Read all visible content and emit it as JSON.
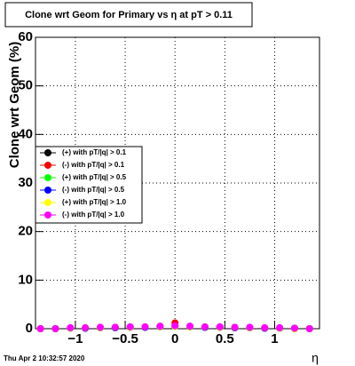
{
  "chart_data": {
    "type": "scatter",
    "title": "Clone wrt Geom for Primary vs   η at pT > 0.11",
    "y_label": "Clone wrt Geom (%)",
    "x_label": "η",
    "timestamp": "Thu Apr  2 10:32:57 2020",
    "x": [
      -1.35,
      -1.2,
      -1.05,
      -0.9,
      -0.75,
      -0.6,
      -0.45,
      -0.3,
      -0.15,
      0,
      0.15,
      0.3,
      0.45,
      0.6,
      0.75,
      0.9,
      1.05,
      1.2,
      1.35
    ],
    "series": [
      {
        "name": "(+) with pT/|q| > 0.1",
        "color": "#000000",
        "values": [
          0,
          0,
          0.1,
          0.1,
          0.2,
          0.2,
          0.3,
          0.3,
          0.4,
          0.5,
          0.4,
          0.3,
          0.3,
          0.2,
          0.2,
          0.1,
          0.1,
          0,
          0
        ]
      },
      {
        "name": "(-) with pT/|q| > 0.1",
        "color": "#ff0000",
        "values": [
          0,
          0,
          0.1,
          0.1,
          0.2,
          0.2,
          0.3,
          0.3,
          0.5,
          1.2,
          0.5,
          0.3,
          0.3,
          0.2,
          0.2,
          0.1,
          0.1,
          0,
          0
        ]
      },
      {
        "name": "(+) with pT/|q| > 0.5",
        "color": "#00ff00",
        "values": [
          0,
          0,
          0.1,
          0.1,
          0.2,
          0.2,
          0.3,
          0.4,
          0.4,
          0.5,
          0.4,
          0.3,
          0.3,
          0.2,
          0.2,
          0.1,
          0.1,
          0,
          0
        ]
      },
      {
        "name": "(-) with pT/|q| > 0.5",
        "color": "#0000ff",
        "values": [
          0,
          0,
          0.1,
          0.1,
          0.2,
          0.2,
          0.3,
          0.3,
          0.4,
          0.6,
          0.4,
          0.3,
          0.3,
          0.2,
          0.2,
          0.1,
          0.1,
          0.1,
          0
        ]
      },
      {
        "name": "(+) with pT/|q| > 1.0",
        "color": "#ffff00",
        "values": [
          0,
          0,
          0.1,
          0.2,
          0.2,
          0.3,
          0.3,
          0.4,
          0.4,
          0.5,
          0.4,
          0.4,
          0.3,
          0.3,
          0.2,
          0.2,
          0.1,
          0,
          0
        ]
      },
      {
        "name": "(-) with pT/|q| > 1.0",
        "color": "#ff00ff",
        "values": [
          0,
          0,
          0.2,
          0.2,
          0.3,
          0.3,
          0.4,
          0.4,
          0.5,
          0.6,
          0.5,
          0.4,
          0.4,
          0.3,
          0.3,
          0.2,
          0.2,
          0.1,
          0
        ]
      }
    ],
    "xlim": [
      -1.4,
      1.45
    ],
    "ylim": [
      0,
      60
    ],
    "xticks": [
      {
        "value": -1,
        "label": "−1"
      },
      {
        "value": -0.5,
        "label": "−0.5"
      },
      0,
      0.5,
      1
    ],
    "yticks": [
      0,
      10,
      20,
      30,
      40,
      50,
      60
    ],
    "grid": true
  }
}
